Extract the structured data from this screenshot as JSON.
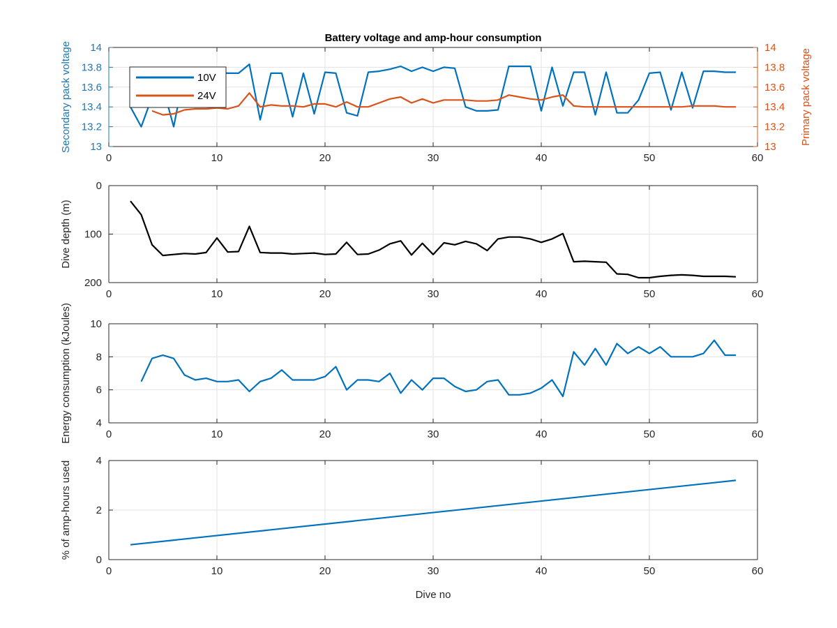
{
  "chart_data": [
    {
      "type": "line",
      "title": "Battery voltage and amp-hour consumption",
      "xlabel": "",
      "ylabel": "Secondary pack voltage",
      "ylabel_right": "Primary pack voltage",
      "xlim": [
        0,
        60
      ],
      "ylim": [
        13,
        14
      ],
      "ylim_right": [
        13,
        14
      ],
      "xticks": [
        "0",
        "10",
        "20",
        "30",
        "40",
        "50",
        "60"
      ],
      "yticks": [
        "13",
        "13.2",
        "13.4",
        "13.6",
        "13.8",
        "14"
      ],
      "yticks_right": [
        "13",
        "13.2",
        "13.4",
        "13.6",
        "13.8",
        "14"
      ],
      "grid": true,
      "legend": "top-left",
      "colors": {
        "left_axis": "#1f77b4",
        "right_axis": "#d95319"
      },
      "series": [
        {
          "name": "10V",
          "axis": "left",
          "color": "#0072bd",
          "x": [
            2,
            3,
            4,
            5,
            6,
            7,
            8,
            9,
            10,
            11,
            12,
            13,
            14,
            15,
            16,
            17,
            18,
            19,
            20,
            21,
            22,
            23,
            24,
            25,
            26,
            27,
            28,
            29,
            30,
            31,
            32,
            33,
            34,
            35,
            36,
            37,
            38,
            39,
            40,
            41,
            42,
            43,
            44,
            45,
            46,
            47,
            48,
            49,
            50,
            51,
            52,
            53,
            54,
            55,
            56,
            57,
            58
          ],
          "y": [
            13.4,
            13.2,
            13.5,
            13.6,
            13.2,
            13.75,
            13.75,
            13.75,
            13.75,
            13.74,
            13.74,
            13.83,
            13.27,
            13.74,
            13.74,
            13.3,
            13.74,
            13.33,
            13.75,
            13.74,
            13.34,
            13.31,
            13.75,
            13.76,
            13.78,
            13.81,
            13.76,
            13.8,
            13.76,
            13.8,
            13.79,
            13.4,
            13.36,
            13.36,
            13.37,
            13.81,
            13.81,
            13.81,
            13.36,
            13.8,
            13.41,
            13.75,
            13.75,
            13.32,
            13.75,
            13.34,
            13.34,
            13.47,
            13.74,
            13.75,
            13.37,
            13.75,
            13.39,
            13.76,
            13.76,
            13.75,
            13.75
          ]
        },
        {
          "name": "24V",
          "axis": "right",
          "color": "#d95319",
          "x": [
            4,
            5,
            6,
            7,
            8,
            9,
            10,
            11,
            12,
            13,
            14,
            15,
            16,
            17,
            18,
            19,
            20,
            21,
            22,
            23,
            24,
            25,
            26,
            27,
            28,
            29,
            30,
            31,
            32,
            33,
            34,
            35,
            36,
            37,
            38,
            39,
            40,
            41,
            42,
            43,
            44,
            45,
            46,
            47,
            48,
            49,
            50,
            51,
            52,
            53,
            54,
            55,
            56,
            57,
            58
          ],
          "y": [
            13.36,
            13.32,
            13.33,
            13.37,
            13.38,
            13.38,
            13.39,
            13.38,
            13.41,
            13.54,
            13.4,
            13.42,
            13.41,
            13.41,
            13.4,
            13.43,
            13.43,
            13.4,
            13.45,
            13.4,
            13.4,
            13.44,
            13.48,
            13.5,
            13.44,
            13.48,
            13.44,
            13.47,
            13.47,
            13.47,
            13.46,
            13.46,
            13.47,
            13.52,
            13.5,
            13.48,
            13.47,
            13.5,
            13.52,
            13.41,
            13.4,
            13.4,
            13.4,
            13.4,
            13.4,
            13.4,
            13.4,
            13.4,
            13.4,
            13.4,
            13.41,
            13.41,
            13.41,
            13.4,
            13.4
          ]
        }
      ]
    },
    {
      "type": "line",
      "title": "",
      "xlabel": "",
      "ylabel": "Dive depth (m)",
      "xlim": [
        0,
        60
      ],
      "ylim": [
        0,
        200
      ],
      "y_reversed": true,
      "xticks": [
        "0",
        "10",
        "20",
        "30",
        "40",
        "50",
        "60"
      ],
      "yticks": [
        "0",
        "100",
        "200"
      ],
      "grid": true,
      "series": [
        {
          "color": "#000000",
          "x": [
            2,
            3,
            4,
            5,
            6,
            7,
            8,
            9,
            10,
            11,
            12,
            13,
            14,
            15,
            16,
            17,
            18,
            19,
            20,
            21,
            22,
            23,
            24,
            25,
            26,
            27,
            28,
            29,
            30,
            31,
            32,
            33,
            34,
            35,
            36,
            37,
            38,
            39,
            40,
            41,
            42,
            43,
            44,
            45,
            46,
            47,
            48,
            49,
            50,
            51,
            52,
            53,
            54,
            55,
            56,
            57,
            58
          ],
          "y": [
            32,
            60,
            122,
            144,
            142,
            140,
            141,
            138,
            108,
            137,
            136,
            84,
            138,
            139,
            139,
            141,
            140,
            139,
            142,
            141,
            117,
            142,
            141,
            133,
            120,
            114,
            143,
            119,
            142,
            118,
            122,
            115,
            120,
            134,
            110,
            106,
            106,
            110,
            117,
            110,
            99,
            157,
            156,
            157,
            158,
            182,
            183,
            190,
            190,
            187,
            185,
            184,
            185,
            187,
            187,
            187,
            188
          ]
        }
      ]
    },
    {
      "type": "line",
      "title": "",
      "xlabel": "",
      "ylabel": "Energy consumption (kJoules)",
      "xlim": [
        0,
        60
      ],
      "ylim": [
        4,
        10
      ],
      "xticks": [
        "0",
        "10",
        "20",
        "30",
        "40",
        "50",
        "60"
      ],
      "yticks": [
        "4",
        "6",
        "8",
        "10"
      ],
      "grid": true,
      "series": [
        {
          "color": "#0072bd",
          "x": [
            3,
            4,
            5,
            6,
            7,
            8,
            9,
            10,
            11,
            12,
            13,
            14,
            15,
            16,
            17,
            18,
            19,
            20,
            21,
            22,
            23,
            24,
            25,
            26,
            27,
            28,
            29,
            30,
            31,
            32,
            33,
            34,
            35,
            36,
            37,
            38,
            39,
            40,
            41,
            42,
            43,
            44,
            45,
            46,
            47,
            48,
            49,
            50,
            51,
            52,
            53,
            54,
            55,
            56,
            57,
            58
          ],
          "y": [
            6.5,
            7.9,
            8.1,
            7.9,
            6.9,
            6.6,
            6.7,
            6.5,
            6.5,
            6.6,
            5.9,
            6.5,
            6.7,
            7.2,
            6.6,
            6.6,
            6.6,
            6.8,
            7.4,
            6.0,
            6.6,
            6.6,
            6.5,
            7.0,
            5.8,
            6.6,
            6.0,
            6.7,
            6.7,
            6.2,
            5.9,
            6.0,
            6.5,
            6.6,
            5.7,
            5.7,
            5.8,
            6.1,
            6.6,
            5.6,
            8.3,
            7.5,
            8.5,
            7.5,
            8.8,
            8.2,
            8.6,
            8.2,
            8.6,
            8.0,
            8.0,
            8.0,
            8.2,
            9.0,
            8.1,
            8.1
          ]
        }
      ]
    },
    {
      "type": "line",
      "title": "",
      "xlabel": "Dive no",
      "ylabel": "% of amp-hours used",
      "xlim": [
        0,
        60
      ],
      "ylim": [
        0,
        4
      ],
      "xticks": [
        "0",
        "10",
        "20",
        "30",
        "40",
        "50",
        "60"
      ],
      "yticks": [
        "0",
        "2",
        "4"
      ],
      "grid": true,
      "series": [
        {
          "color": "#0072bd",
          "x": [
            2,
            58
          ],
          "y": [
            0.6,
            3.2
          ]
        }
      ]
    }
  ]
}
